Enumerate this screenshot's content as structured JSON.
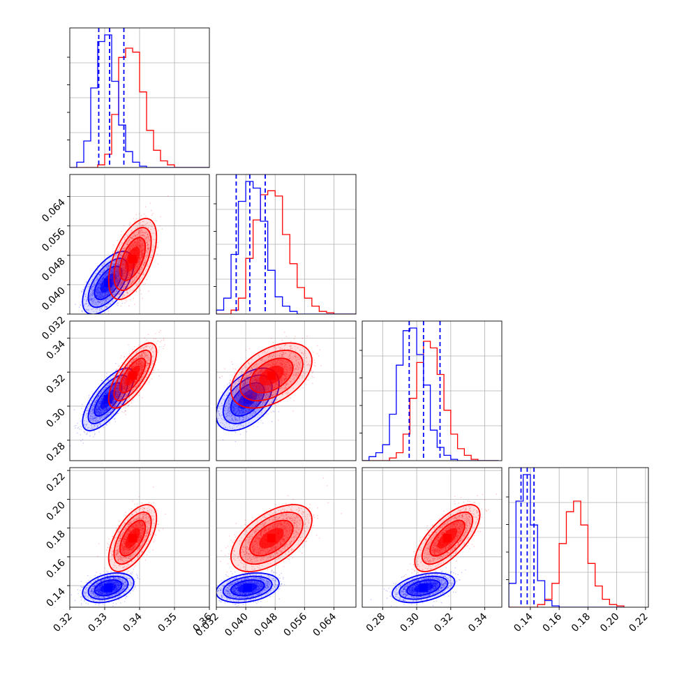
{
  "figure": {
    "type": "corner-plot",
    "grid": true,
    "series": [
      {
        "color": "#0000ff",
        "style": "histogram-and-contours",
        "quantile_markers": true
      },
      {
        "color": "#ff0000",
        "style": "histogram-and-contours",
        "quantile_markers": false
      }
    ]
  },
  "chart_data": [
    {
      "type": "histogram",
      "panel": "diag-0",
      "xlim": [
        0.32,
        0.36
      ],
      "xticks": [
        0.32,
        0.33,
        0.34,
        0.35,
        0.36
      ],
      "tick_labels_shown": false,
      "bin_edges": [
        0.32,
        0.322,
        0.324,
        0.326,
        0.328,
        0.33,
        0.332,
        0.334,
        0.336,
        0.338,
        0.34,
        0.342,
        0.344,
        0.346,
        0.348,
        0.35,
        0.352,
        0.354,
        0.356,
        0.358,
        0.36
      ],
      "blue_counts": [
        0,
        0.04,
        0.2,
        0.6,
        0.95,
        1.0,
        0.65,
        0.32,
        0.12,
        0.04,
        0.01,
        0,
        0,
        0,
        0,
        0,
        0,
        0,
        0,
        0
      ],
      "red_counts": [
        0,
        0,
        0,
        0,
        0.02,
        0.1,
        0.4,
        0.83,
        0.9,
        0.87,
        0.57,
        0.28,
        0.13,
        0.05,
        0.02,
        0,
        0,
        0,
        0,
        0
      ],
      "blue_quantiles": [
        0.3283,
        0.3314,
        0.3355
      ]
    },
    {
      "type": "histogram",
      "panel": "diag-1",
      "xlim": [
        0.032,
        0.07
      ],
      "xticks": [
        0.032,
        0.04,
        0.048,
        0.056,
        0.064
      ],
      "tick_labels_shown": false,
      "bin_edges": [
        0.032,
        0.034,
        0.036,
        0.038,
        0.04,
        0.042,
        0.044,
        0.046,
        0.048,
        0.05,
        0.052,
        0.054,
        0.056,
        0.058,
        0.06,
        0.062,
        0.064,
        0.066,
        0.068,
        0.07
      ],
      "blue_counts": [
        0.03,
        0.12,
        0.45,
        0.85,
        1.0,
        0.95,
        0.7,
        0.33,
        0.13,
        0.06,
        0.02,
        0,
        0,
        0,
        0,
        0,
        0,
        0,
        0
      ],
      "red_counts": [
        0,
        0,
        0.03,
        0.12,
        0.42,
        0.71,
        0.9,
        0.93,
        0.89,
        0.6,
        0.38,
        0.2,
        0.12,
        0.06,
        0.02,
        0.01,
        0,
        0,
        0
      ],
      "blue_quantiles": [
        0.0374,
        0.0411,
        0.0453
      ]
    },
    {
      "type": "histogram",
      "panel": "diag-2",
      "xlim": [
        0.268,
        0.35
      ],
      "xticks": [
        0.28,
        0.3,
        0.32,
        0.34
      ],
      "tick_labels_shown": false,
      "bin_edges": [
        0.268,
        0.272,
        0.276,
        0.28,
        0.284,
        0.288,
        0.292,
        0.296,
        0.3,
        0.304,
        0.308,
        0.312,
        0.316,
        0.32,
        0.324,
        0.328,
        0.332,
        0.336,
        0.34,
        0.344,
        0.348
      ],
      "blue_counts": [
        0,
        0.03,
        0.06,
        0.12,
        0.35,
        0.72,
        0.98,
        1.0,
        0.8,
        0.57,
        0.23,
        0.1,
        0.04,
        0.01,
        0,
        0,
        0,
        0,
        0,
        0
      ],
      "red_counts": [
        0,
        0,
        0,
        0,
        0.02,
        0.06,
        0.2,
        0.47,
        0.74,
        0.9,
        0.85,
        0.65,
        0.38,
        0.2,
        0.09,
        0.04,
        0.01,
        0,
        0,
        0
      ],
      "blue_quantiles": [
        0.2956,
        0.304,
        0.3137
      ]
    },
    {
      "type": "histogram",
      "panel": "diag-3",
      "xlim": [
        0.125,
        0.222
      ],
      "xticks": [
        0.14,
        0.16,
        0.18,
        0.2,
        0.22
      ],
      "xtick_labels": [
        "0.14",
        "0.16",
        "0.18",
        "0.20",
        "0.22"
      ],
      "bin_edges": [
        0.125,
        0.13,
        0.135,
        0.14,
        0.145,
        0.15,
        0.155,
        0.16,
        0.165,
        0.17,
        0.175,
        0.18,
        0.185,
        0.19,
        0.195,
        0.2,
        0.205
      ],
      "blue_counts": [
        0.18,
        0.8,
        1.0,
        0.62,
        0.2,
        0.05,
        0.01,
        0,
        0,
        0,
        0,
        0,
        0,
        0,
        0,
        0
      ],
      "red_counts": [
        0,
        0,
        0,
        0,
        0.02,
        0.06,
        0.18,
        0.48,
        0.72,
        0.8,
        0.62,
        0.33,
        0.16,
        0.06,
        0.02,
        0.01
      ],
      "blue_quantiles": [
        0.1335,
        0.1378,
        0.1425
      ]
    },
    {
      "type": "scatter-density",
      "panel": "1-0",
      "x_param": 0,
      "y_param": 1,
      "xlim": [
        0.32,
        0.36
      ],
      "ylim": [
        0.032,
        0.07
      ],
      "yticks": [
        0.032,
        0.04,
        0.048,
        0.056,
        0.064
      ],
      "ytick_labels": [
        "0.032",
        "0.040",
        "0.048",
        "0.056",
        "0.064"
      ],
      "blue": {
        "mean": [
          0.331,
          0.0405
        ],
        "sd": [
          0.003,
          0.0035
        ],
        "rho": 0.6
      },
      "red": {
        "mean": [
          0.338,
          0.047
        ],
        "sd": [
          0.0028,
          0.0045
        ],
        "rho": 0.55
      }
    },
    {
      "type": "scatter-density",
      "panel": "2-0",
      "x_param": 0,
      "y_param": 2,
      "xlim": [
        0.32,
        0.36
      ],
      "ylim": [
        0.268,
        0.35
      ],
      "yticks": [
        0.28,
        0.3,
        0.32,
        0.34
      ],
      "ytick_labels": [
        "0.28",
        "0.30",
        "0.32",
        "0.34"
      ],
      "blue": {
        "mean": [
          0.331,
          0.304
        ],
        "sd": [
          0.003,
          0.0075
        ],
        "rho": 0.72
      },
      "red": {
        "mean": [
          0.338,
          0.318
        ],
        "sd": [
          0.0028,
          0.0078
        ],
        "rho": 0.72
      }
    },
    {
      "type": "scatter-density",
      "panel": "2-1",
      "x_param": 1,
      "y_param": 2,
      "xlim": [
        0.032,
        0.07
      ],
      "ylim": [
        0.268,
        0.35
      ],
      "blue": {
        "mean": [
          0.0405,
          0.304
        ],
        "sd": [
          0.0035,
          0.0075
        ],
        "rho": 0.5
      },
      "red": {
        "mean": [
          0.047,
          0.318
        ],
        "sd": [
          0.0045,
          0.0078
        ],
        "rho": 0.45
      }
    },
    {
      "type": "scatter-density",
      "panel": "3-0",
      "x_param": 0,
      "y_param": 3,
      "xlim": [
        0.32,
        0.36
      ],
      "ylim": [
        0.125,
        0.222
      ],
      "yticks": [
        0.14,
        0.16,
        0.18,
        0.2,
        0.22
      ],
      "ytick_labels": [
        "0.14",
        "0.16",
        "0.18",
        "0.20",
        "0.22"
      ],
      "xticks": [
        0.32,
        0.33,
        0.34,
        0.35,
        0.36
      ],
      "xtick_labels": [
        "0.32",
        "0.33",
        "0.34",
        "0.35",
        "0.36"
      ],
      "blue": {
        "mean": [
          0.331,
          0.1385
        ],
        "sd": [
          0.003,
          0.0042
        ],
        "rho": 0.35
      },
      "red": {
        "mean": [
          0.338,
          0.173
        ],
        "sd": [
          0.0028,
          0.0095
        ],
        "rho": 0.6
      }
    },
    {
      "type": "scatter-density",
      "panel": "3-1",
      "x_param": 1,
      "y_param": 3,
      "xlim": [
        0.032,
        0.07
      ],
      "ylim": [
        0.125,
        0.222
      ],
      "xticks": [
        0.032,
        0.04,
        0.048,
        0.056,
        0.064
      ],
      "xtick_labels": [
        "0.032",
        "0.040",
        "0.048",
        "0.056",
        "0.064"
      ],
      "blue": {
        "mean": [
          0.0405,
          0.1385
        ],
        "sd": [
          0.0035,
          0.0042
        ],
        "rho": 0.3
      },
      "red": {
        "mean": [
          0.047,
          0.173
        ],
        "sd": [
          0.0045,
          0.0095
        ],
        "rho": 0.55
      }
    },
    {
      "type": "scatter-density",
      "panel": "3-2",
      "x_param": 2,
      "y_param": 3,
      "xlim": [
        0.268,
        0.35
      ],
      "ylim": [
        0.125,
        0.222
      ],
      "xticks": [
        0.28,
        0.3,
        0.32,
        0.34
      ],
      "xtick_labels": [
        "0.28",
        "0.30",
        "0.32",
        "0.34"
      ],
      "blue": {
        "mean": [
          0.304,
          0.1385
        ],
        "sd": [
          0.0075,
          0.0042
        ],
        "rho": 0.4
      },
      "red": {
        "mean": [
          0.318,
          0.173
        ],
        "sd": [
          0.0078,
          0.0095
        ],
        "rho": 0.7
      }
    }
  ]
}
